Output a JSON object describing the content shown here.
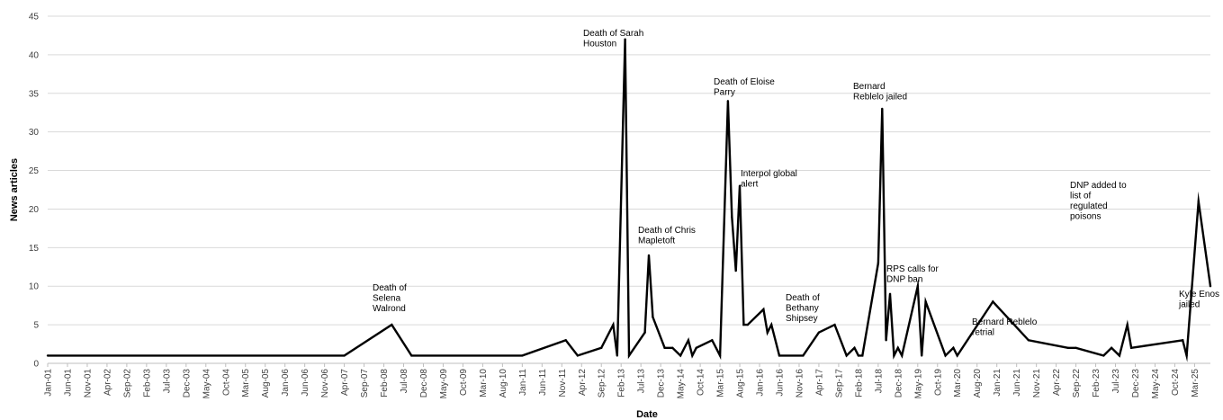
{
  "chart_data": {
    "type": "line",
    "title": "",
    "xlabel": "Date",
    "ylabel": "News articles",
    "ylim": [
      0,
      45
    ],
    "yticks": [
      0,
      5,
      10,
      15,
      20,
      25,
      30,
      35,
      40,
      45
    ],
    "grid": "horizontal",
    "line_color": "#000000",
    "xlim": [
      "2001-01",
      "2025-07"
    ],
    "x_tick_labels": [
      "Jan-01",
      "Jun-01",
      "Nov-01",
      "Apr-02",
      "Sep-02",
      "Feb-03",
      "Jul-03",
      "Dec-03",
      "May-04",
      "Oct-04",
      "Mar-05",
      "Aug-05",
      "Jan-06",
      "Jun-06",
      "Nov-06",
      "Apr-07",
      "Sep-07",
      "Feb-08",
      "Jul-08",
      "Dec-08",
      "May-09",
      "Oct-09",
      "Mar-10",
      "Aug-10",
      "Jan-11",
      "Jun-11",
      "Nov-11",
      "Apr-12",
      "Sep-12",
      "Feb-13",
      "Jul-13",
      "Dec-13",
      "May-14",
      "Oct-14",
      "Mar-15",
      "Aug-15",
      "Jan-16",
      "Jun-16",
      "Nov-16",
      "Apr-17",
      "Sep-17",
      "Feb-18",
      "Jul-18",
      "Dec-18",
      "May-19",
      "Oct-19",
      "Mar-20",
      "Aug-20",
      "Jan-21",
      "Jun-21",
      "Nov-21",
      "Apr-22",
      "Sep-22",
      "Feb-23",
      "Jul-23",
      "Dec-23",
      "May-24",
      "Oct-24",
      "Mar-25"
    ],
    "points": [
      {
        "x": "2001-01",
        "y": 1
      },
      {
        "x": "2007-04",
        "y": 1
      },
      {
        "x": "2008-04",
        "y": 5
      },
      {
        "x": "2008-09",
        "y": 1
      },
      {
        "x": "2011-01",
        "y": 1
      },
      {
        "x": "2011-12",
        "y": 3
      },
      {
        "x": "2012-03",
        "y": 1
      },
      {
        "x": "2012-09",
        "y": 2
      },
      {
        "x": "2012-12",
        "y": 5
      },
      {
        "x": "2013-01",
        "y": 1
      },
      {
        "x": "2013-03",
        "y": 42
      },
      {
        "x": "2013-04",
        "y": 1
      },
      {
        "x": "2013-08",
        "y": 4
      },
      {
        "x": "2013-09",
        "y": 14
      },
      {
        "x": "2013-10",
        "y": 6
      },
      {
        "x": "2014-01",
        "y": 2
      },
      {
        "x": "2014-03",
        "y": 2
      },
      {
        "x": "2014-05",
        "y": 1
      },
      {
        "x": "2014-07",
        "y": 3
      },
      {
        "x": "2014-08",
        "y": 1
      },
      {
        "x": "2014-09",
        "y": 2
      },
      {
        "x": "2015-01",
        "y": 3
      },
      {
        "x": "2015-03",
        "y": 1
      },
      {
        "x": "2015-05",
        "y": 34
      },
      {
        "x": "2015-06",
        "y": 19
      },
      {
        "x": "2015-07",
        "y": 12
      },
      {
        "x": "2015-08",
        "y": 23
      },
      {
        "x": "2015-09",
        "y": 5
      },
      {
        "x": "2015-10",
        "y": 5
      },
      {
        "x": "2016-02",
        "y": 7
      },
      {
        "x": "2016-03",
        "y": 4
      },
      {
        "x": "2016-04",
        "y": 5
      },
      {
        "x": "2016-06",
        "y": 1
      },
      {
        "x": "2016-12",
        "y": 1
      },
      {
        "x": "2017-04",
        "y": 4
      },
      {
        "x": "2017-08",
        "y": 5
      },
      {
        "x": "2017-11",
        "y": 1
      },
      {
        "x": "2018-01",
        "y": 2
      },
      {
        "x": "2018-02",
        "y": 1
      },
      {
        "x": "2018-03",
        "y": 1
      },
      {
        "x": "2018-07",
        "y": 13
      },
      {
        "x": "2018-08",
        "y": 33
      },
      {
        "x": "2018-09",
        "y": 3
      },
      {
        "x": "2018-10",
        "y": 9
      },
      {
        "x": "2018-11",
        "y": 1
      },
      {
        "x": "2018-12",
        "y": 2
      },
      {
        "x": "2019-01",
        "y": 1
      },
      {
        "x": "2019-05",
        "y": 10
      },
      {
        "x": "2019-06",
        "y": 1
      },
      {
        "x": "2019-07",
        "y": 8
      },
      {
        "x": "2019-12",
        "y": 1
      },
      {
        "x": "2020-02",
        "y": 2
      },
      {
        "x": "2020-03",
        "y": 1
      },
      {
        "x": "2020-12",
        "y": 8
      },
      {
        "x": "2021-09",
        "y": 3
      },
      {
        "x": "2022-07",
        "y": 2
      },
      {
        "x": "2022-09",
        "y": 2
      },
      {
        "x": "2023-04",
        "y": 1
      },
      {
        "x": "2023-06",
        "y": 2
      },
      {
        "x": "2023-08",
        "y": 1
      },
      {
        "x": "2023-10",
        "y": 5
      },
      {
        "x": "2023-11",
        "y": 2
      },
      {
        "x": "2024-12",
        "y": 3
      },
      {
        "x": "2025-01",
        "y": 1
      },
      {
        "x": "2025-04",
        "y": 21
      },
      {
        "x": "2025-07",
        "y": 10
      }
    ]
  },
  "annotations": [
    {
      "lines": [
        "Death of",
        "Selena",
        "Walrond"
      ]
    },
    {
      "lines": [
        "Death of Sarah",
        "Houston"
      ]
    },
    {
      "lines": [
        "Death of Chris",
        "Mapletoft"
      ]
    },
    {
      "lines": [
        "Death of Eloise",
        "Parry"
      ]
    },
    {
      "lines": [
        "Interpol global",
        "alert"
      ]
    },
    {
      "lines": [
        "Death of",
        "Bethany",
        "Shipsey"
      ]
    },
    {
      "lines": [
        "Bernard",
        "Reblelo jailed"
      ]
    },
    {
      "lines": [
        "RPS calls for",
        "DNP ban"
      ]
    },
    {
      "lines": [
        "Bernard Reblelo",
        "retrial"
      ]
    },
    {
      "lines": [
        "DNP added to",
        "list of",
        "regulated",
        "poisons"
      ]
    },
    {
      "lines": [
        "Kyle Enos",
        "jailed"
      ]
    }
  ]
}
